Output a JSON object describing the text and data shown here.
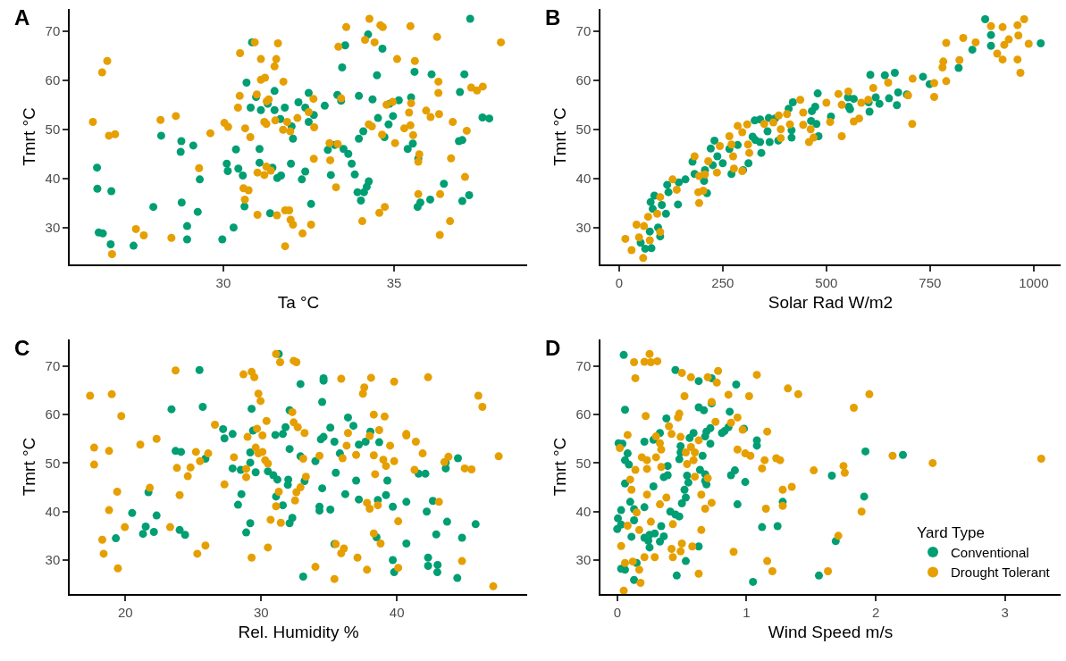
{
  "chart_data": [
    {
      "type": "scatter",
      "title": "A",
      "xlabel": "Ta °C",
      "ylabel": "Tmrt °C",
      "xlim": [
        25.5,
        38.9
      ],
      "xticks": [
        30,
        35
      ],
      "ylim": [
        22.5,
        74.5
      ],
      "yticks": [
        30,
        40,
        50,
        60,
        70
      ],
      "marker": "circle",
      "series": [
        {
          "color": "#009e73",
          "x": [
            37.23,
            34.24,
            33.57,
            34.66,
            33.48,
            34.5,
            35.6,
            36.1,
            37.06,
            36.93,
            30.68,
            30.96,
            31.5,
            32.5,
            32.2,
            31.3,
            30.8,
            31.1,
            31.5,
            31.8,
            32.4,
            32.65,
            32.97,
            33.34,
            33.45,
            33.97,
            34.37,
            34.87,
            35.14,
            35.5,
            34.97,
            34.53,
            34.84,
            37.59,
            37.79,
            31.67,
            32.0,
            32.5,
            32.04,
            34.1,
            33.97,
            34.72,
            36.9,
            37.0,
            35.55,
            35.4,
            33.06,
            33.26,
            33.52,
            33.66,
            33.76,
            33.85,
            33.15,
            35.71,
            31.98,
            32.4,
            31.06,
            30.37,
            31.06,
            30.1,
            30.13,
            30.44,
            30.57,
            31.44,
            31.58,
            31.69,
            32.3,
            34.26,
            34.2,
            33.93,
            34.12,
            34.03,
            36.46,
            37.2,
            37.0,
            36.06,
            35.77,
            35.69,
            32.57,
            30.62,
            31.37,
            28.77,
            28.75,
            29.12,
            28.18,
            26.3,
            26.31,
            26.72,
            29.31,
            28.78,
            27.95,
            29.25,
            28.94,
            30.3,
            26.35,
            26.47,
            26.7,
            27.37,
            28.94,
            29.97,
            30.84
          ],
          "values": [
            72.5,
            69.3,
            67.1,
            66.4,
            62.6,
            61.0,
            61.7,
            61.2,
            61.2,
            57.6,
            59.5,
            56.6,
            57.8,
            57.4,
            55.5,
            55.2,
            54.4,
            53.9,
            53.9,
            54.4,
            54.4,
            52.9,
            54.8,
            57.0,
            55.8,
            56.8,
            56.1,
            55.2,
            55.9,
            56.5,
            52.7,
            52.3,
            51.0,
            52.4,
            52.2,
            52.1,
            50.6,
            51.5,
            48.1,
            49.6,
            48.1,
            48.4,
            47.6,
            47.8,
            47.1,
            46.0,
            45.8,
            46.8,
            46.0,
            45.0,
            43.0,
            40.8,
            40.7,
            44.0,
            43.0,
            41.4,
            46.0,
            45.9,
            43.2,
            43.0,
            41.5,
            42.0,
            40.6,
            42.2,
            40.1,
            40.6,
            39.8,
            39.4,
            38.3,
            37.2,
            37.2,
            35.5,
            38.9,
            36.6,
            35.4,
            35.7,
            35.1,
            34.2,
            34.8,
            34.3,
            32.9,
            47.6,
            45.4,
            46.7,
            48.7,
            42.2,
            37.9,
            37.4,
            39.8,
            35.1,
            34.2,
            33.2,
            30.3,
            30.0,
            29.0,
            28.8,
            26.6,
            26.3,
            27.6,
            27.6,
            67.7
          ]
        },
        {
          "color": "#e69f00",
          "x": [
            34.28,
            33.6,
            34.6,
            34.67,
            35.48,
            36.26,
            38.13,
            34.15,
            34.43,
            33.37,
            30.92,
            31.6,
            30.49,
            31.1,
            31.55,
            31.5,
            35.09,
            35.61,
            36.3,
            36.3,
            37.26,
            37.43,
            37.6,
            31.1,
            31.22,
            31.76,
            30.98,
            30.48,
            30.43,
            31.27,
            31.33,
            32.64,
            33.45,
            34.78,
            34.96,
            35.5,
            35.44,
            35.94,
            36.07,
            36.32,
            36.72,
            37.13,
            32.5,
            32.17,
            31.52,
            31.2,
            31.26,
            31.87,
            31.75,
            32.66,
            34.26,
            34.35,
            35.48,
            35.3,
            35.56,
            34.65,
            35.03,
            31.96,
            30.64,
            30.79,
            30.03,
            30.14,
            29.62,
            28.61,
            28.16,
            26.18,
            26.6,
            26.45,
            26.65,
            26.83,
            29.29,
            33.11,
            33.35,
            33.13,
            32.65,
            33.3,
            35.74,
            35.71,
            36.67,
            37.08,
            35.71,
            36.35,
            34.73,
            34.57,
            34.07,
            36.64,
            36.34,
            31.26,
            31.39,
            31.0,
            31.2,
            30.59,
            30.74,
            30.63,
            31.0,
            31.57,
            31.81,
            31.93,
            31.97,
            32.04,
            32.57,
            32.32,
            31.81,
            27.44,
            27.67,
            28.48,
            26.74
          ],
          "values": [
            72.5,
            70.8,
            71.2,
            70.8,
            71.0,
            68.8,
            67.7,
            68.2,
            67.7,
            66.8,
            67.7,
            67.5,
            65.5,
            64.3,
            64.3,
            62.8,
            64.3,
            63.9,
            59.7,
            57.4,
            58.5,
            57.9,
            58.7,
            60.1,
            60.5,
            59.7,
            57.1,
            56.8,
            54.4,
            55.7,
            56.1,
            56.2,
            56.3,
            55.0,
            55.6,
            55.3,
            53.4,
            53.8,
            52.5,
            53.1,
            51.5,
            49.7,
            53.5,
            52.3,
            51.8,
            51.5,
            51.1,
            51.5,
            49.9,
            50.4,
            51.0,
            50.6,
            50.8,
            50.2,
            48.8,
            48.9,
            47.2,
            49.6,
            50.2,
            48.4,
            51.3,
            50.5,
            49.2,
            52.7,
            51.9,
            51.5,
            63.9,
            61.6,
            48.7,
            49.0,
            42.1,
            47.2,
            47.0,
            43.7,
            44.0,
            38.2,
            44.9,
            43.4,
            44.1,
            40.3,
            36.8,
            36.8,
            34.2,
            33.0,
            31.3,
            31.3,
            28.5,
            42.4,
            41.6,
            41.2,
            40.7,
            38.0,
            37.6,
            35.7,
            32.6,
            32.5,
            33.5,
            33.5,
            31.6,
            30.6,
            30.6,
            28.8,
            26.2,
            29.7,
            28.4,
            27.9,
            24.6
          ]
        }
      ]
    },
    {
      "type": "scatter",
      "title": "B",
      "xlabel": "Solar Rad W/m2",
      "ylabel": "Tmrt °C",
      "xlim": [
        -45,
        1065
      ],
      "xticks": [
        0,
        250,
        500,
        750,
        1000
      ],
      "ylim": [
        22.5,
        74.5
      ],
      "yticks": [
        30,
        40,
        50,
        60,
        70
      ],
      "marker": "circle",
      "series": [
        {
          "color": "#009e73",
          "x": [
            883,
            897,
            897,
            1017,
            852,
            819,
            606,
            641,
            665,
            733,
            749,
            673,
            694,
            651,
            670,
            619,
            628,
            604,
            602,
            552,
            566,
            554,
            557,
            479,
            511,
            473,
            465,
            463,
            476,
            481,
            416,
            416,
            419,
            409,
            358,
            363,
            384,
            376,
            361,
            340,
            327,
            322,
            329,
            340,
            343,
            312,
            299,
            271,
            286,
            266,
            230,
            221,
            237,
            250,
            226,
            207,
            205,
            177,
            182,
            160,
            144,
            116,
            119,
            85,
            76,
            81,
            103,
            113,
            142,
            94,
            74,
            99,
            52,
            78,
            63,
            212
          ],
          "values": [
            72.4,
            69.2,
            67.0,
            67.5,
            66.2,
            62.5,
            61.1,
            61.0,
            61.5,
            60.7,
            59.2,
            57.5,
            57.1,
            56.3,
            54.9,
            56.5,
            55.2,
            53.6,
            55.5,
            56.5,
            56.2,
            54.6,
            54.1,
            57.3,
            52.6,
            54.6,
            53.7,
            51.7,
            51.1,
            48.6,
            49.8,
            48.3,
            55.5,
            54.2,
            49.6,
            47.4,
            47.7,
            52.2,
            52.3,
            52.0,
            51.8,
            48.5,
            47.8,
            47.4,
            45.2,
            43.1,
            41.7,
            40.9,
            46.8,
            46.0,
            47.7,
            46.1,
            44.5,
            43.1,
            42.7,
            41.7,
            39.5,
            43.4,
            40.9,
            39.8,
            39.2,
            38.7,
            37.2,
            36.5,
            35.2,
            33.8,
            34.6,
            32.8,
            34.7,
            30.0,
            29.2,
            28.2,
            26.9,
            25.8,
            25.7,
            37.0
          ]
        },
        {
          "color": "#e69f00",
          "x": [
            977,
            961,
            925,
            897,
            963,
            940,
            988,
            929,
            830,
            860,
            789,
            912,
            925,
            961,
            968,
            821,
            782,
            780,
            789,
            760,
            760,
            708,
            697,
            707,
            649,
            613,
            601,
            584,
            579,
            566,
            553,
            537,
            529,
            537,
            500,
            509,
            437,
            444,
            444,
            458,
            462,
            469,
            405,
            412,
            385,
            390,
            390,
            372,
            350,
            309,
            286,
            297,
            311,
            314,
            266,
            271,
            275,
            297,
            277,
            243,
            236,
            215,
            207,
            182,
            193,
            191,
            203,
            193,
            129,
            139,
            99,
            92,
            70,
            42,
            60,
            99,
            48,
            15,
            74,
            30,
            58
          ],
          "values": [
            72.4,
            71.2,
            70.8,
            71.0,
            69.1,
            68.3,
            67.4,
            67.2,
            68.6,
            67.7,
            67.6,
            65.4,
            64.2,
            64.2,
            61.5,
            64.1,
            63.8,
            62.6,
            59.8,
            59.4,
            56.6,
            60.3,
            56.9,
            51.1,
            59.5,
            58.4,
            56.0,
            55.4,
            52.2,
            51.6,
            57.7,
            55.0,
            57.2,
            48.6,
            55.4,
            51.5,
            56.0,
            53.4,
            50.9,
            47.4,
            50.0,
            48.3,
            53.1,
            51.0,
            52.8,
            50.0,
            48.2,
            51.4,
            51.1,
            51.0,
            50.7,
            49.4,
            46.9,
            45.2,
            48.6,
            46.9,
            44.5,
            41.5,
            42.0,
            46.6,
            41.2,
            43.5,
            40.8,
            44.5,
            40.5,
            37.2,
            37.5,
            35.0,
            39.8,
            37.7,
            36.2,
            32.8,
            32.2,
            30.6,
            30.3,
            29.1,
            28.0,
            27.7,
            27.4,
            25.4,
            23.8
          ]
        }
      ]
    },
    {
      "type": "scatter",
      "title": "C",
      "xlabel": "Rel. Humidity %",
      "ylabel": "Tmrt °C",
      "xlim": [
        15.9,
        49.6
      ],
      "xticks": [
        20,
        30,
        40
      ],
      "ylim": [
        23.0,
        75.5
      ],
      "yticks": [
        30,
        40,
        50,
        60,
        70
      ],
      "marker": "circle",
      "series": [
        {
          "color": "#009e73",
          "x": [
            31.3,
            25.46,
            34.6,
            34.6,
            32.9,
            34.5,
            23.4,
            25.7,
            29.3,
            32.1,
            36.4,
            36.8,
            35.1,
            27.2,
            27.9,
            27.3,
            29.4,
            31.05,
            31.6,
            31.8,
            34.4,
            34.6,
            35.4,
            37.2,
            37.7,
            38.05,
            38.7,
            32.1,
            32.9,
            34.0,
            35.8,
            44.5,
            43.6,
            43.6,
            41.6,
            42.1,
            23.7,
            24.1,
            25.9,
            29.2,
            29.2,
            27.9,
            28.5,
            29.6,
            30.5,
            30.9,
            31.2,
            32.0,
            31.97,
            33.2,
            35.5,
            37.0,
            39.3,
            34.5,
            36.2,
            37.2,
            38.6,
            39.2,
            40.7,
            42.65,
            39.7,
            42.2,
            34.3,
            34.3,
            35.1,
            31.6,
            31.1,
            28.55,
            28.3,
            21.7,
            20.5,
            22.3,
            29.2,
            28.9,
            32.3,
            32.1,
            21.5,
            22.1,
            21.3,
            19.3,
            24.0,
            24.4,
            38.5,
            40.7,
            42.9,
            43.7,
            44.8,
            45.8,
            35.4,
            39.7,
            39.8,
            42.3,
            42.3,
            43.0,
            42.98,
            44.45,
            33.1
          ],
          "values": [
            72.5,
            69.2,
            67.5,
            67.0,
            66.3,
            62.6,
            61.1,
            61.6,
            61.2,
            60.9,
            59.4,
            57.7,
            57.3,
            57.0,
            56.0,
            55.1,
            56.7,
            55.8,
            56.0,
            57.4,
            54.9,
            55.4,
            54.4,
            53.8,
            54.4,
            56.5,
            54.3,
            52.9,
            51.4,
            50.4,
            52.0,
            51.0,
            50.1,
            48.9,
            47.8,
            47.8,
            52.5,
            52.3,
            50.9,
            52.2,
            50.1,
            48.9,
            48.6,
            48.1,
            48.3,
            47.5,
            46.6,
            46.6,
            45.5,
            46.3,
            48.0,
            46.4,
            46.4,
            44.8,
            43.6,
            42.5,
            42.4,
            43.4,
            42.0,
            42.2,
            41.0,
            40.0,
            41.0,
            40.2,
            40.4,
            41.3,
            43.1,
            43.6,
            41.4,
            44.0,
            39.7,
            39.2,
            37.6,
            35.7,
            38.7,
            37.6,
            36.9,
            35.8,
            35.4,
            34.5,
            36.2,
            35.2,
            34.7,
            33.4,
            35.3,
            37.9,
            34.6,
            37.4,
            33.3,
            30.0,
            27.5,
            30.5,
            28.8,
            29.0,
            27.5,
            26.3,
            26.6
          ]
        },
        {
          "color": "#e69f00",
          "x": [
            31.1,
            31.4,
            32.4,
            32.6,
            23.7,
            28.7,
            29.3,
            29.5,
            35.9,
            38.1,
            39.8,
            42.3,
            37.6,
            37.5,
            17.4,
            19.0,
            46.0,
            46.3,
            29.8,
            29.96,
            19.7,
            32.3,
            38.3,
            39.1,
            30.4,
            32.4,
            32.7,
            33.2,
            26.6,
            29.7,
            30.1,
            29.0,
            36.4,
            38.7,
            40.7,
            40.7,
            41.4,
            39.5,
            41.9,
            36.3,
            38.0,
            17.7,
            18.8,
            21.1,
            22.3,
            25.2,
            26.1,
            25.5,
            23.8,
            24.8,
            24.6,
            17.7,
            28.0,
            29.6,
            30.1,
            29.8,
            30.3,
            30.5,
            28.9,
            28.9,
            27.3,
            33.1,
            34.3,
            36.0,
            37.0,
            38.3,
            39.0,
            39.2,
            39.8,
            38.4,
            41.3,
            43.8,
            43.5,
            45.0,
            45.5,
            47.5,
            33.3,
            32.9,
            32.6,
            32.5,
            31.3,
            31.1,
            21.8,
            19.4,
            24.0,
            18.8,
            19.96,
            23.3,
            18.3,
            18.4,
            19.45,
            25.3,
            25.9,
            29.3,
            30.5,
            30.7,
            31.45,
            37.8,
            38.0,
            38.6,
            43.1,
            40.1,
            38.3,
            38.8,
            35.5,
            36.1,
            35.9,
            37.1,
            34.0,
            35.4,
            37.8,
            40.1,
            44.8,
            47.1
          ],
          "values": [
            72.5,
            70.8,
            71.1,
            70.8,
            69.1,
            68.3,
            68.8,
            67.7,
            67.4,
            67.6,
            66.8,
            67.7,
            65.6,
            64.3,
            63.9,
            64.2,
            63.9,
            61.6,
            64.3,
            62.8,
            59.7,
            60.5,
            60.0,
            59.6,
            58.7,
            58.4,
            57.4,
            56.2,
            57.9,
            57.1,
            55.7,
            55.4,
            56.2,
            56.8,
            56.0,
            55.7,
            54.4,
            53.6,
            52.0,
            53.6,
            55.6,
            53.2,
            52.5,
            53.8,
            55.0,
            52.3,
            52.0,
            50.4,
            49.0,
            49.1,
            47.3,
            49.7,
            51.2,
            53.2,
            52.3,
            52.0,
            50.6,
            49.9,
            48.8,
            47.1,
            45.6,
            50.9,
            51.5,
            51.0,
            51.7,
            51.6,
            50.7,
            49.4,
            50.4,
            47.7,
            48.6,
            51.3,
            50.2,
            48.9,
            48.7,
            51.4,
            47.2,
            45.0,
            44.0,
            42.3,
            44.1,
            41.1,
            44.9,
            44.1,
            43.4,
            40.3,
            36.8,
            36.8,
            34.2,
            31.3,
            28.3,
            31.3,
            33.0,
            30.5,
            32.6,
            38.3,
            37.7,
            41.8,
            40.6,
            41.3,
            42.0,
            38.0,
            35.5,
            33.4,
            33.3,
            32.4,
            31.4,
            30.5,
            28.6,
            26.1,
            28.0,
            28.4,
            29.8,
            24.6
          ]
        }
      ]
    },
    {
      "type": "scatter",
      "title": "D",
      "xlabel": "Wind Speed m/s",
      "ylabel": "Tmrt °C",
      "xlim": [
        -0.13,
        3.43
      ],
      "xticks": [
        0,
        1,
        2,
        3
      ],
      "ylim": [
        23.0,
        75.5
      ],
      "yticks": [
        30,
        40,
        50,
        60,
        70
      ],
      "marker": "circle",
      "legend": "bottom right",
      "legend_title": "Yard Type",
      "series": [
        {
          "name": "Conventional",
          "color": "#009e73",
          "x": [
            0.05,
            0.45,
            0.63,
            0.73,
            0.92,
            0.06,
            0.38,
            0.63,
            0.67,
            0.87,
            0.73,
            0.98,
            1.08,
            1.08,
            1.92,
            2.21,
            0.01,
            0.04,
            0.21,
            0.28,
            0.33,
            0.49,
            0.56,
            0.59,
            0.69,
            0.72,
            0.68,
            0.72,
            0.81,
            0.83,
            0.86,
            0.49,
            0.48,
            0.08,
            0.06,
            0.09,
            0.39,
            0.64,
            0.68,
            0.66,
            0.68,
            0.69,
            0.54,
            0.55,
            0.36,
            0.39,
            0.91,
            0.88,
            0.99,
            0.06,
            0.28,
            0.5,
            0.53,
            0.52,
            0.21,
            0.1,
            0.03,
            0.005,
            0.13,
            0.13,
            0.41,
            0.45,
            0.48,
            0.0,
            0.03,
            0.11,
            0.21,
            0.25,
            0.29,
            0.34,
            0.36,
            0.24,
            0.25,
            0.33,
            0.93,
            1.12,
            1.24,
            1.66,
            1.91,
            1.28,
            1.69,
            0.63,
            0.53,
            0.15,
            0.03,
            0.06,
            0.13,
            0.46,
            1.05,
            1.56
          ],
          "values": [
            72.3,
            69.2,
            66.9,
            67.5,
            66.2,
            61.0,
            59.2,
            61.5,
            60.9,
            60.6,
            62.3,
            57.1,
            54.7,
            53.6,
            52.4,
            51.7,
            54.1,
            54.0,
            54.4,
            54.8,
            56.2,
            53.5,
            55.2,
            56.2,
            56.5,
            57.2,
            55.5,
            54.0,
            56.2,
            56.6,
            57.4,
            52.2,
            50.8,
            52.0,
            50.6,
            49.7,
            49.4,
            48.6,
            47.7,
            51.5,
            46.3,
            45.6,
            47.4,
            46.0,
            47.1,
            47.5,
            48.5,
            47.5,
            46.1,
            45.8,
            45.2,
            41.7,
            42.9,
            44.5,
            40.9,
            42.0,
            40.3,
            38.6,
            40.5,
            38.2,
            40.0,
            39.4,
            39.0,
            36.4,
            37.3,
            34.8,
            34.6,
            35.2,
            35.5,
            37.0,
            34.9,
            34.0,
            32.6,
            33.8,
            41.5,
            36.8,
            37.0,
            47.4,
            43.1,
            42.0,
            33.9,
            32.8,
            29.8,
            29.4,
            28.2,
            28.0,
            25.9,
            26.8,
            25.5,
            26.8
          ]
        },
        {
          "name": "Drought Tolerant",
          "color": "#e69f00",
          "x": [
            0.25,
            0.13,
            0.21,
            0.26,
            0.31,
            0.14,
            0.5,
            0.57,
            0.7,
            0.77,
            0.78,
            1.08,
            0.52,
            0.86,
            1.02,
            1.32,
            1.4,
            1.95,
            1.83,
            0.73,
            0.22,
            0.48,
            0.47,
            0.4,
            0.76,
            0.88,
            0.93,
            0.97,
            1.16,
            0.08,
            0.3,
            0.33,
            0.34,
            0.42,
            0.49,
            0.63,
            0.57,
            0.53,
            0.6,
            0.59,
            0.54,
            0.6,
            0.02,
            0.19,
            0.23,
            0.3,
            0.23,
            0.14,
            0.34,
            0.93,
            0.99,
            1.03,
            1.14,
            1.12,
            1.23,
            1.26,
            2.13,
            2.44,
            3.28,
            1.52,
            1.75,
            1.76,
            0.1,
            0.11,
            0.23,
            0.33,
            0.38,
            0.65,
            0.73,
            0.68,
            0.7,
            1.28,
            1.35,
            1.28,
            1.15,
            1.89,
            1.71,
            0.15,
            0.08,
            0.17,
            0.26,
            0.43,
            0.65,
            0.03,
            0.42,
            0.49,
            0.5,
            0.58,
            0.21,
            0.29,
            0.43,
            0.9,
            1.16,
            1.2,
            1.63,
            0.12,
            0.06,
            0.17,
            0.18,
            0.63,
            0.05
          ],
          "values": [
            72.5,
            70.8,
            70.9,
            70.8,
            71.0,
            67.5,
            68.6,
            67.7,
            67.7,
            66.6,
            69.0,
            68.2,
            63.8,
            64.1,
            63.8,
            65.4,
            64.2,
            64.2,
            61.4,
            62.6,
            59.7,
            60.2,
            59.4,
            57.6,
            58.5,
            58.3,
            59.4,
            56.9,
            56.5,
            55.8,
            55.5,
            54.1,
            52.8,
            56.0,
            55.4,
            54.7,
            53.3,
            52.2,
            52.2,
            50.6,
            49.8,
            47.2,
            53.1,
            51.2,
            50.6,
            51.2,
            48.8,
            48.6,
            49.2,
            52.8,
            52.0,
            51.5,
            50.6,
            48.9,
            51.0,
            50.6,
            51.5,
            50.0,
            50.9,
            48.5,
            49.4,
            48.0,
            46.6,
            44.5,
            43.5,
            41.5,
            42.9,
            43.5,
            41.8,
            40.6,
            46.9,
            44.5,
            45.1,
            41.2,
            40.6,
            40.0,
            35.0,
            39.8,
            37.1,
            36.2,
            37.9,
            37.4,
            36.2,
            32.9,
            32.3,
            31.8,
            33.4,
            32.8,
            30.6,
            30.6,
            30.6,
            31.7,
            29.8,
            27.7,
            27.7,
            29.7,
            29.4,
            28.0,
            25.3,
            27.2,
            23.7
          ]
        }
      ]
    }
  ]
}
